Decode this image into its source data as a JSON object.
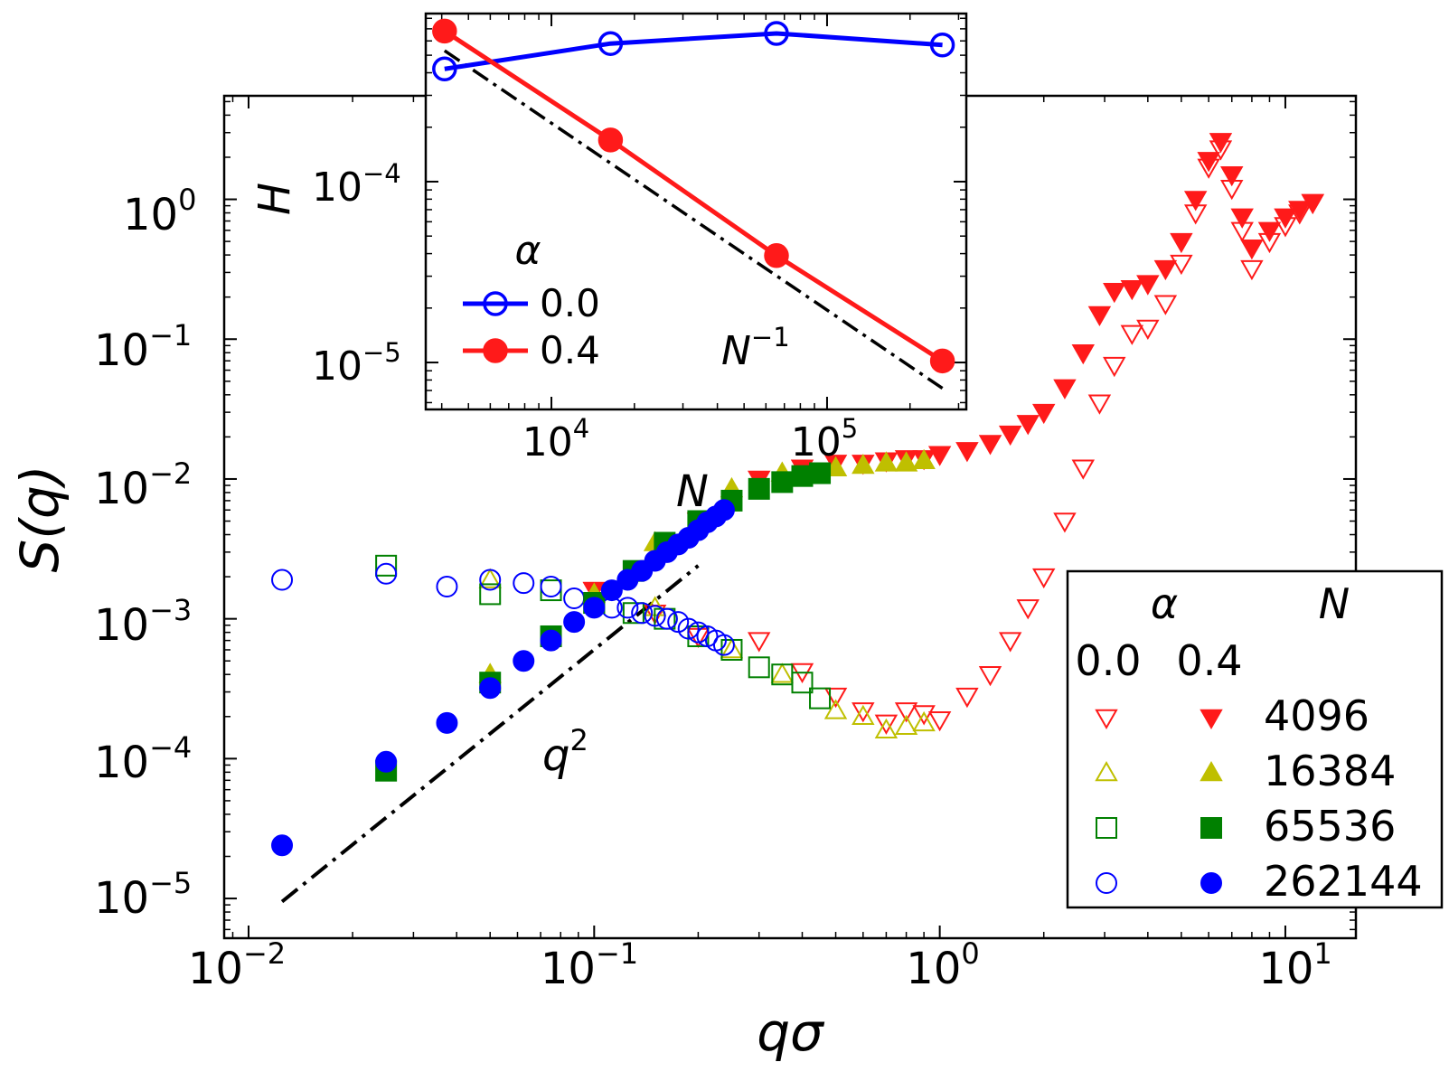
{
  "chart_data": [
    {
      "type": "scatter",
      "role": "main",
      "xlabel": "qσ",
      "ylabel": "S(q)",
      "xscale": "log",
      "yscale": "log",
      "xlim": [
        0.0085,
        16
      ],
      "ylim": [
        5.2e-06,
        5.5
      ],
      "x_ticks": [
        {
          "value": 0.01,
          "label": "10",
          "exp": "−2"
        },
        {
          "value": 0.1,
          "label": "10",
          "exp": "−1"
        },
        {
          "value": 1,
          "label": "10",
          "exp": "0"
        },
        {
          "value": 10,
          "label": "10",
          "exp": "1"
        }
      ],
      "y_ticks": [
        {
          "value": 1e-05,
          "label": "10",
          "exp": "−5"
        },
        {
          "value": 0.0001,
          "label": "10",
          "exp": "−4"
        },
        {
          "value": 0.001,
          "label": "10",
          "exp": "−3"
        },
        {
          "value": 0.01,
          "label": "10",
          "exp": "−2"
        },
        {
          "value": 0.1,
          "label": "10",
          "exp": "−1"
        },
        {
          "value": 1,
          "label": "10",
          "exp": "0"
        }
      ],
      "series": [
        {
          "name": "α=0.0, N=4096",
          "alpha": "0.0",
          "N": "4096",
          "marker": "triangle-down-open",
          "color": "#ff1a1a",
          "x": [
            0.1,
            0.15,
            0.2,
            0.3,
            0.4,
            0.5,
            0.6,
            0.7,
            0.8,
            0.9,
            1.0,
            1.2,
            1.4,
            1.6,
            1.8,
            2.0,
            2.3,
            2.6,
            2.9,
            3.2,
            3.6,
            4.0,
            4.5,
            5.0,
            5.5,
            6.0,
            6.5,
            7.0,
            7.5,
            8.0,
            9.0,
            10.0,
            11.0,
            12.0
          ],
          "y": [
            0.0016,
            0.0011,
            0.00075,
            0.0007,
            0.00042,
            0.00028,
            0.00022,
            0.00018,
            0.00022,
            0.00021,
            0.00019,
            0.00028,
            0.0004,
            0.0007,
            0.0012,
            0.002,
            0.005,
            0.012,
            0.035,
            0.065,
            0.11,
            0.12,
            0.18,
            0.35,
            0.8,
            1.7,
            2.3,
            1.2,
            0.6,
            0.32,
            0.5,
            0.65,
            0.8,
            0.95
          ]
        },
        {
          "name": "α=0.0, N=16384",
          "alpha": "0.0",
          "N": "16384",
          "marker": "triangle-up-open",
          "color": "#bfbf00",
          "x": [
            0.05,
            0.1,
            0.15,
            0.25,
            0.35,
            0.5,
            0.6,
            0.7,
            0.8,
            0.9
          ],
          "y": [
            0.0019,
            0.0015,
            0.0012,
            0.0006,
            0.0004,
            0.00022,
            0.0002,
            0.00016,
            0.00017,
            0.00018
          ]
        },
        {
          "name": "α=0.0, N=65536",
          "alpha": "0.0",
          "N": "65536",
          "marker": "square-open",
          "color": "#008000",
          "x": [
            0.025,
            0.05,
            0.075,
            0.1,
            0.13,
            0.16,
            0.2,
            0.25,
            0.3,
            0.35,
            0.4,
            0.45
          ],
          "y": [
            0.0024,
            0.0015,
            0.0016,
            0.0013,
            0.0011,
            0.001,
            0.00075,
            0.0006,
            0.00045,
            0.0004,
            0.00035,
            0.00027
          ]
        },
        {
          "name": "α=0.0, N=262144",
          "alpha": "0.0",
          "N": "262144",
          "marker": "circle-open",
          "color": "#0000ff",
          "x": [
            0.0125,
            0.025,
            0.0375,
            0.05,
            0.0625,
            0.075,
            0.0875,
            0.1,
            0.1125,
            0.125,
            0.1375,
            0.15,
            0.1625,
            0.175,
            0.1875,
            0.2,
            0.2125,
            0.225,
            0.2375
          ],
          "y": [
            0.0019,
            0.0021,
            0.0017,
            0.0019,
            0.0018,
            0.0017,
            0.0014,
            0.0013,
            0.0012,
            0.0012,
            0.0011,
            0.00105,
            0.001,
            0.00095,
            0.00085,
            0.0008,
            0.00075,
            0.0007,
            0.00065
          ]
        },
        {
          "name": "α=0.4, N=4096",
          "alpha": "0.4",
          "N": "4096",
          "marker": "triangle-down-filled",
          "color": "#ff1a1a",
          "x": [
            0.1,
            0.2,
            0.3,
            0.4,
            0.5,
            0.6,
            0.7,
            0.8,
            0.9,
            1.0,
            1.2,
            1.4,
            1.6,
            1.8,
            2.0,
            2.3,
            2.6,
            2.9,
            3.2,
            3.6,
            4.0,
            4.5,
            5.0,
            5.5,
            6.0,
            6.5,
            7.0,
            7.5,
            8.0,
            9.0,
            10.0,
            11.0,
            12.0
          ],
          "y": [
            0.0016,
            0.005,
            0.01,
            0.012,
            0.013,
            0.013,
            0.0135,
            0.014,
            0.014,
            0.015,
            0.016,
            0.018,
            0.021,
            0.025,
            0.03,
            0.045,
            0.08,
            0.15,
            0.22,
            0.23,
            0.25,
            0.32,
            0.5,
            1.0,
            1.9,
            2.6,
            1.5,
            0.75,
            0.45,
            0.6,
            0.75,
            0.85,
            0.95
          ]
        },
        {
          "name": "α=0.4, N=16384",
          "alpha": "0.4",
          "N": "16384",
          "marker": "triangle-up-filled",
          "color": "#bfbf00",
          "x": [
            0.05,
            0.1,
            0.15,
            0.25,
            0.35,
            0.5,
            0.6,
            0.7,
            0.8,
            0.9
          ],
          "y": [
            0.0004,
            0.0015,
            0.0035,
            0.0085,
            0.011,
            0.012,
            0.0125,
            0.013,
            0.013,
            0.0135
          ]
        },
        {
          "name": "α=0.4, N=65536",
          "alpha": "0.4",
          "N": "65536",
          "marker": "square-filled",
          "color": "#008000",
          "x": [
            0.025,
            0.05,
            0.075,
            0.1,
            0.13,
            0.16,
            0.2,
            0.25,
            0.3,
            0.35,
            0.4,
            0.45
          ],
          "y": [
            8.2e-05,
            0.00035,
            0.00075,
            0.0013,
            0.0022,
            0.0035,
            0.005,
            0.007,
            0.0085,
            0.0095,
            0.0105,
            0.011
          ]
        },
        {
          "name": "α=0.4, N=262144",
          "alpha": "0.4",
          "N": "262144",
          "marker": "circle-filled",
          "color": "#0000ff",
          "x": [
            0.0125,
            0.025,
            0.0375,
            0.05,
            0.0625,
            0.075,
            0.0875,
            0.1,
            0.1125,
            0.125,
            0.1375,
            0.15,
            0.1625,
            0.175,
            0.1875,
            0.2,
            0.2125,
            0.225,
            0.2375
          ],
          "y": [
            2.4e-05,
            9.5e-05,
            0.00018,
            0.00032,
            0.0005,
            0.0007,
            0.00095,
            0.0012,
            0.0016,
            0.0019,
            0.0022,
            0.0026,
            0.003,
            0.0034,
            0.0038,
            0.0043,
            0.0049,
            0.0054,
            0.006
          ]
        }
      ],
      "reference_line": {
        "label_base": "q",
        "label_exp": "2",
        "x": [
          0.0125,
          0.2
        ],
        "y": [
          9.5e-06,
          0.0024
        ]
      },
      "annotation": {
        "text": "N",
        "x": 0.17,
        "y": 0.0085
      },
      "legend": {
        "position": "bottom-right",
        "header_alpha": "α",
        "header_N": "N",
        "alpha_labels": [
          "0.0",
          "0.4"
        ],
        "entries": [
          "4096",
          "16384",
          "65536",
          "262144"
        ]
      }
    },
    {
      "type": "line",
      "role": "inset",
      "xlabel": "",
      "ylabel": "H",
      "xscale": "log",
      "yscale": "log",
      "xlim": [
        3500,
        320000
      ],
      "ylim": [
        5.5e-06,
        0.00085
      ],
      "x_ticks": [
        {
          "value": 10000,
          "label": "10",
          "exp": "4"
        },
        {
          "value": 100000,
          "label": "10",
          "exp": "5"
        }
      ],
      "y_ticks": [
        {
          "value": 1e-05,
          "label": "10",
          "exp": "−5"
        },
        {
          "value": 0.0001,
          "label": "10",
          "exp": "−4"
        }
      ],
      "series": [
        {
          "name": "0.0",
          "marker": "circle-open",
          "color": "#0000ff",
          "x": [
            4096,
            16384,
            65536,
            262144
          ],
          "y": [
            0.00042,
            0.00058,
            0.00066,
            0.00057
          ]
        },
        {
          "name": "0.4",
          "marker": "circle-filled",
          "color": "#ff1a1a",
          "x": [
            4096,
            16384,
            65536,
            262144
          ],
          "y": [
            0.00068,
            0.00017,
            3.9e-05,
            1.02e-05
          ]
        }
      ],
      "reference_line": {
        "label_base": "N",
        "label_exp": "−1",
        "x": [
          4096,
          262144
        ],
        "y": [
          0.00053,
          7.2e-06
        ]
      },
      "legend": {
        "position": "lower-left",
        "title": "α",
        "entries": [
          "0.0",
          "0.4"
        ]
      }
    }
  ]
}
